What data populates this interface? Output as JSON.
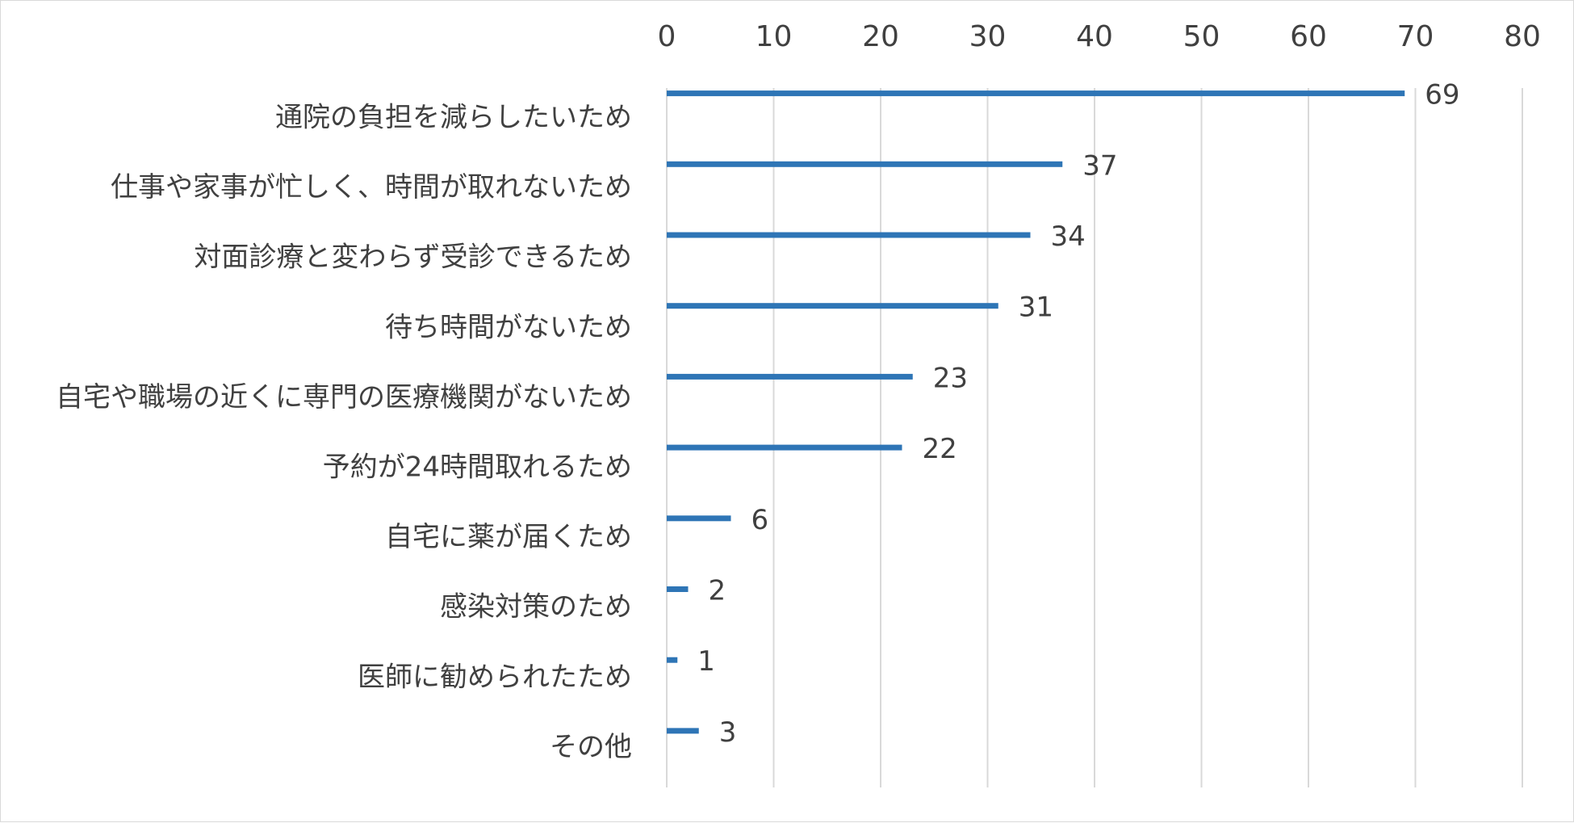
{
  "chart_data": {
    "type": "bar",
    "orientation": "horizontal",
    "categories": [
      "通院の負担を減らしたいため",
      "仕事や家事が忙しく、時間が取れないため",
      "対面診療と変わらず受診できるため",
      "待ち時間がないため",
      "自宅や職場の近くに専門の医療機関がないため",
      "予約が24時間取れるため",
      "自宅に薬が届くため",
      "感染対策のため",
      "医師に勧められたため",
      "その他"
    ],
    "values": [
      69,
      37,
      34,
      31,
      23,
      22,
      6,
      2,
      1,
      3
    ],
    "xlim": [
      0,
      80
    ],
    "xticks": [
      0,
      10,
      20,
      30,
      40,
      50,
      60,
      70,
      80
    ],
    "x_axis_position": "top",
    "grid": true,
    "data_labels": true,
    "title": "",
    "xlabel": "",
    "ylabel": "",
    "colors": {
      "bar": "#2E75B6",
      "grid": "#d9d9d9",
      "text": "#404040"
    }
  }
}
